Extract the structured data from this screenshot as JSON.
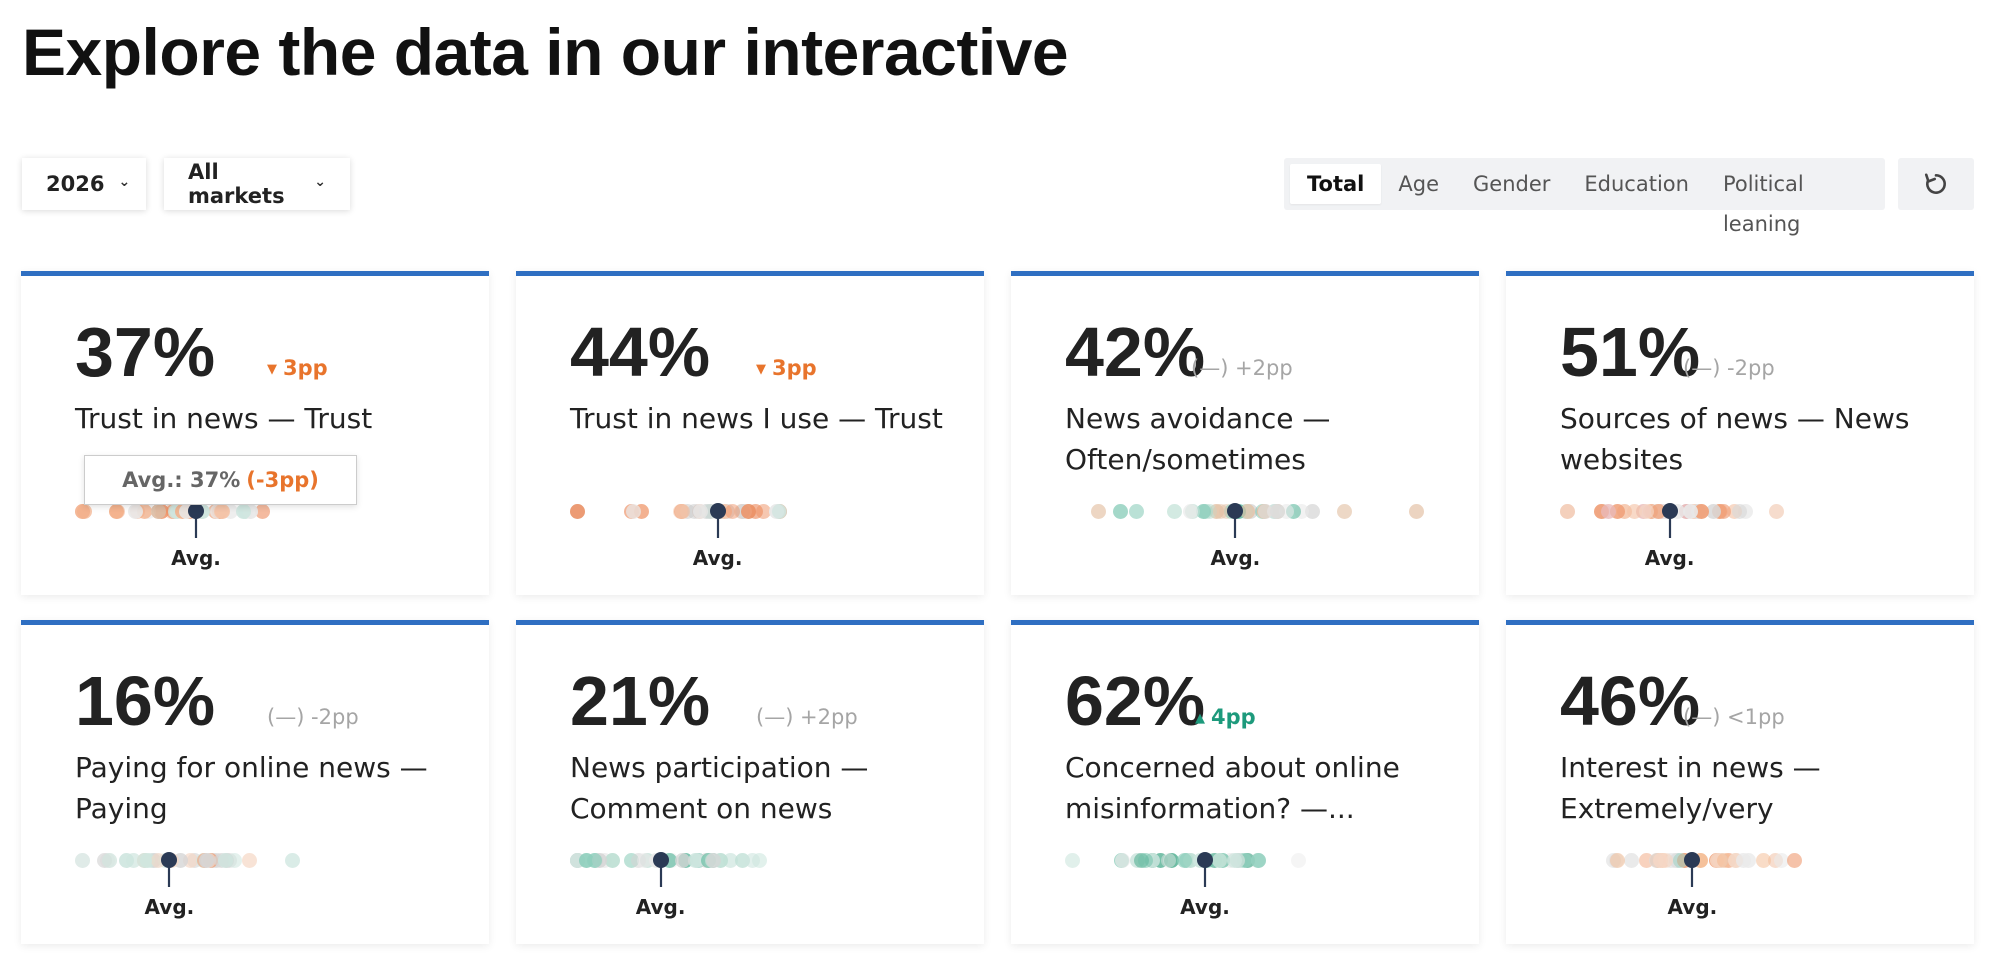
{
  "page": {
    "title": "Explore the data in our interactive"
  },
  "filters": {
    "year": {
      "value": "2026"
    },
    "market": {
      "value": "All markets"
    }
  },
  "breakdown_tabs": [
    {
      "label": "Total",
      "active": true
    },
    {
      "label": "Age",
      "active": false
    },
    {
      "label": "Gender",
      "active": false
    },
    {
      "label": "Education",
      "active": false
    },
    {
      "label": "Political leaning",
      "active": false
    }
  ],
  "colors": {
    "accent": "#2f6fc2",
    "negative": "#e8742c",
    "positive": "#1d9a7c",
    "neutral": "#a5a5a5",
    "marker": "#2b3a55"
  },
  "avg_label": "Avg.",
  "tooltip": {
    "prefix": "Avg.: 37%",
    "change": "(-3pp)"
  },
  "cards": [
    {
      "value": "37%",
      "change": "3pp",
      "direction": "down",
      "label": "Trust in news — Trust",
      "avg_pos": 0.3
    },
    {
      "value": "44%",
      "change": "3pp",
      "direction": "down",
      "label": "Trust in news I use — Trust",
      "avg_pos": 0.37
    },
    {
      "value": "42%",
      "change": "(—) +2pp",
      "direction": "flat",
      "label": "News avoidance — Often/sometimes",
      "avg_pos": 0.43
    },
    {
      "value": "51%",
      "change": "(—) -2pp",
      "direction": "flat",
      "label": "Sources of news — News websites",
      "avg_pos": 0.27
    },
    {
      "value": "16%",
      "change": "(—) -2pp",
      "direction": "flat",
      "label": "Paying for online news — Paying",
      "avg_pos": 0.23
    },
    {
      "value": "21%",
      "change": "(—) +2pp",
      "direction": "flat",
      "label": "News participation — Comment on news",
      "avg_pos": 0.22
    },
    {
      "value": "62%",
      "change": "4pp",
      "direction": "up",
      "label": "Concerned about online misinformation? —...",
      "avg_pos": 0.35
    },
    {
      "value": "46%",
      "change": "(—) <1pp",
      "direction": "flat",
      "label": "Interest in news — Extremely/very",
      "avg_pos": 0.33
    }
  ]
}
